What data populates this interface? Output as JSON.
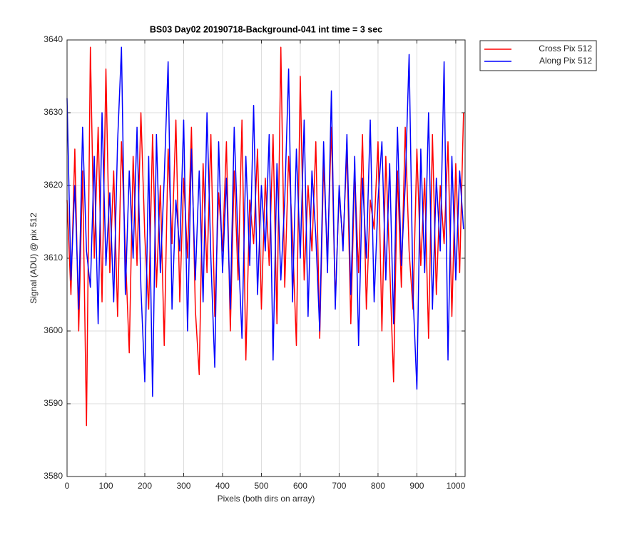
{
  "chart_data": {
    "type": "line",
    "title": "BS03 Day02 20190718-Background-041 int time = 3 sec",
    "xlabel": "Pixels (both dirs on array)",
    "ylabel": "Signal (ADU) @ pix 512",
    "x": [
      0,
      10,
      20,
      30,
      40,
      50,
      60,
      70,
      80,
      90,
      100,
      110,
      120,
      130,
      140,
      150,
      160,
      170,
      180,
      190,
      200,
      210,
      220,
      230,
      240,
      250,
      260,
      270,
      280,
      290,
      300,
      310,
      320,
      330,
      340,
      350,
      360,
      370,
      380,
      390,
      400,
      410,
      420,
      430,
      440,
      450,
      460,
      470,
      480,
      490,
      500,
      510,
      520,
      530,
      540,
      550,
      560,
      570,
      580,
      590,
      600,
      610,
      620,
      630,
      640,
      650,
      660,
      670,
      680,
      690,
      700,
      710,
      720,
      730,
      740,
      750,
      760,
      770,
      780,
      790,
      800,
      810,
      820,
      830,
      840,
      850,
      860,
      870,
      880,
      890,
      900,
      910,
      920,
      930,
      940,
      950,
      960,
      970,
      980,
      990,
      1000,
      1010,
      1020
    ],
    "series": [
      {
        "name": "Cross Pix 512",
        "color": "#ff0000",
        "values": [
          3618,
          3605,
          3625,
          3600,
          3622,
          3587,
          3639,
          3610,
          3628,
          3604,
          3636,
          3608,
          3622,
          3602,
          3626,
          3611,
          3597,
          3624,
          3609,
          3630,
          3613,
          3603,
          3627,
          3606,
          3620,
          3598,
          3625,
          3612,
          3629,
          3604,
          3621,
          3610,
          3628,
          3603,
          3594,
          3623,
          3608,
          3627,
          3602,
          3619,
          3611,
          3626,
          3600,
          3622,
          3607,
          3629,
          3596,
          3618,
          3612,
          3625,
          3603,
          3621,
          3609,
          3627,
          3601,
          3639,
          3606,
          3624,
          3613,
          3598,
          3635,
          3607,
          3620,
          3611,
          3626,
          3599,
          3623,
          3610,
          3628,
          3604,
          3619,
          3612,
          3625,
          3601,
          3622,
          3608,
          3627,
          3603,
          3618,
          3614,
          3626,
          3600,
          3624,
          3609,
          3593,
          3622,
          3606,
          3628,
          3611,
          3603,
          3625,
          3609,
          3621,
          3599,
          3627,
          3605,
          3620,
          3612,
          3626,
          3602,
          3623,
          3608,
          3630
        ]
      },
      {
        "name": "Along Pix 512",
        "color": "#0000ff",
        "values": [
          3632,
          3607,
          3620,
          3603,
          3628,
          3611,
          3606,
          3624,
          3601,
          3630,
          3609,
          3619,
          3604,
          3626,
          3639,
          3605,
          3622,
          3610,
          3628,
          3606,
          3593,
          3624,
          3591,
          3627,
          3608,
          3621,
          3637,
          3603,
          3618,
          3611,
          3629,
          3600,
          3625,
          3607,
          3622,
          3604,
          3630,
          3610,
          3595,
          3626,
          3608,
          3621,
          3603,
          3628,
          3612,
          3599,
          3624,
          3609,
          3631,
          3605,
          3620,
          3611,
          3627,
          3596,
          3623,
          3607,
          3618,
          3636,
          3604,
          3625,
          3610,
          3629,
          3602,
          3622,
          3613,
          3600,
          3626,
          3608,
          3633,
          3603,
          3620,
          3611,
          3627,
          3605,
          3624,
          3598,
          3621,
          3610,
          3629,
          3604,
          3618,
          3626,
          3607,
          3623,
          3601,
          3628,
          3609,
          3620,
          3638,
          3605,
          3592,
          3625,
          3608,
          3630,
          3603,
          3621,
          3611,
          3637,
          3596,
          3624,
          3607,
          3622,
          3614
        ]
      }
    ],
    "xlim": [
      0,
      1024
    ],
    "xticks": [
      0,
      100,
      200,
      300,
      400,
      500,
      600,
      700,
      800,
      900,
      1000
    ],
    "ylim": [
      3580,
      3640
    ],
    "yticks": [
      3580,
      3590,
      3600,
      3610,
      3620,
      3630,
      3640
    ],
    "grid": true,
    "legend": "outside-top-right"
  }
}
